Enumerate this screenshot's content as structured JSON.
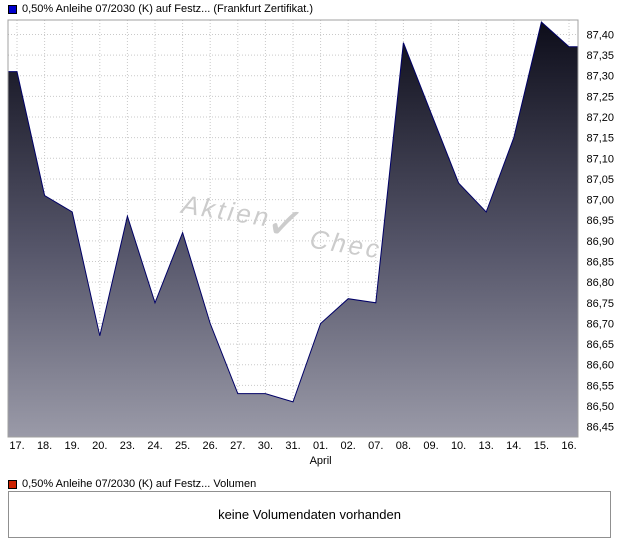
{
  "page": {
    "background": "#ffffff"
  },
  "legend_top": {
    "marker_color": "#0000cc",
    "label": "0,50% Anleihe 07/2030 (K) auf Festz... (Frankfurt Zertifikat.)"
  },
  "legend_volume": {
    "marker_color": "#cc2200",
    "label": "0,50% Anleihe 07/2030 (K) auf Festz... Volumen"
  },
  "volume_panel": {
    "message": "keine Volumendaten vorhanden"
  },
  "watermark": {
    "part1": "Aktien",
    "check": "✓",
    "part2": "Check",
    "color": "#cccccc"
  },
  "chart_data": {
    "type": "area",
    "title": "0,50% Anleihe 07/2030 (K) auf Festz... (Frankfurt Zertifikat.)",
    "categories": [
      "17.",
      "18.",
      "19.",
      "20.",
      "23.",
      "24.",
      "25.",
      "26.",
      "27.",
      "30.",
      "31.",
      "01.",
      "02.",
      "07.",
      "08.",
      "09.",
      "10.",
      "13.",
      "14.",
      "15.",
      "16."
    ],
    "values": [
      87.31,
      87.01,
      86.97,
      86.67,
      86.96,
      86.75,
      86.92,
      86.7,
      86.53,
      86.53,
      86.51,
      86.7,
      86.76,
      86.75,
      87.38,
      87.21,
      87.04,
      86.97,
      87.15,
      87.43,
      87.37
    ],
    "month_label": "April",
    "month_label_index": 11,
    "y_ticks": [
      "87,40",
      "87,35",
      "87,30",
      "87,25",
      "87,20",
      "87,15",
      "87,10",
      "87,05",
      "87,00",
      "86,95",
      "86,90",
      "86,85",
      "86,80",
      "86,75",
      "86,70",
      "86,65",
      "86,60",
      "86,55",
      "86,50",
      "86,45"
    ],
    "ylim": [
      86.425,
      87.435
    ],
    "xlabel": "",
    "ylabel": "",
    "grid": true,
    "legend_position": "top-left",
    "colors": {
      "line": "#000066",
      "area_top": "#0d0d1a",
      "area_mid": "#56566a",
      "area_bottom": "#9a9aa8",
      "grid": "#c9c9c9",
      "border": "#a0a0a0",
      "text": "#000000"
    }
  }
}
